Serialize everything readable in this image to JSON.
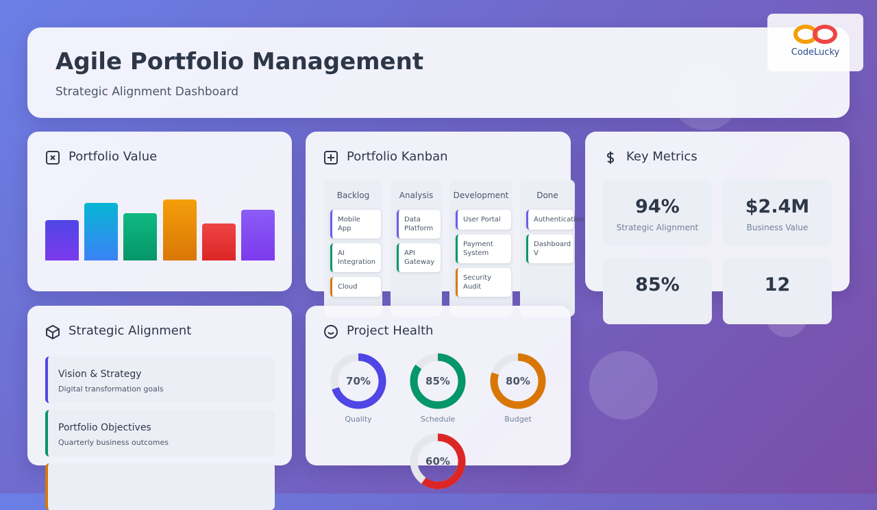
{
  "logo": {
    "text": "CodeLucky"
  },
  "header": {
    "title": "Agile Portfolio Management",
    "subtitle": "Strategic Alignment Dashboard"
  },
  "portfolio_value": {
    "title": "Portfolio Value",
    "bars": [
      {
        "value": 59,
        "colors": [
          "#7c3aed",
          "#4f46e5"
        ]
      },
      {
        "value": 84,
        "colors": [
          "#3b82f6",
          "#06b6d4"
        ]
      },
      {
        "value": 69,
        "colors": [
          "#059669",
          "#10b981"
        ]
      },
      {
        "value": 89,
        "colors": [
          "#d97706",
          "#f59e0b"
        ]
      },
      {
        "value": 54,
        "colors": [
          "#dc2626",
          "#ef4444"
        ]
      },
      {
        "value": 74,
        "colors": [
          "#7c3aed",
          "#8b5cf6"
        ]
      }
    ]
  },
  "kanban": {
    "title": "Portfolio Kanban",
    "columns": [
      {
        "name": "Backlog",
        "cards": [
          {
            "text": "Mobile App",
            "color": "#6d5ce7"
          },
          {
            "text": "AI Integration",
            "color": "#059669"
          },
          {
            "text": "Cloud",
            "color": "#d97706"
          }
        ]
      },
      {
        "name": "Analysis",
        "cards": [
          {
            "text": "Data Platform",
            "color": "#6d5ce7"
          },
          {
            "text": "API Gateway",
            "color": "#059669"
          }
        ]
      },
      {
        "name": "Development",
        "cards": [
          {
            "text": "User Portal",
            "color": "#6d5ce7"
          },
          {
            "text": "Payment System",
            "color": "#059669"
          },
          {
            "text": "Security Audit",
            "color": "#d97706"
          }
        ]
      },
      {
        "name": "Done",
        "cards": [
          {
            "text": "Authentication",
            "color": "#6d5ce7"
          },
          {
            "text": "Dashboard V",
            "color": "#059669"
          }
        ]
      }
    ]
  },
  "metrics": {
    "title": "Key Metrics",
    "items": [
      {
        "value": "94%",
        "label": "Strategic Alignment"
      },
      {
        "value": "$2.4M",
        "label": "Business Value"
      },
      {
        "value": "85%"
      },
      {
        "value": "12"
      }
    ]
  },
  "alignment": {
    "title": "Strategic Alignment",
    "items": [
      {
        "title": "Vision & Strategy",
        "description": "Digital transformation goals",
        "color": "#4f46e5"
      },
      {
        "title": "Portfolio Objectives",
        "description": "Quarterly business outcomes",
        "color": "#059669"
      },
      {
        "color": "#d97706"
      }
    ]
  },
  "health": {
    "title": "Project Health",
    "items": [
      {
        "value": 70,
        "value_label": "70%",
        "label": "Quality",
        "color": "#4f46e5"
      },
      {
        "value": 85,
        "value_label": "85%",
        "label": "Schedule",
        "color": "#059669"
      },
      {
        "value": 80,
        "value_label": "80%",
        "label": "Budget",
        "color": "#d97706"
      },
      {
        "value": 60,
        "value_label": "60%",
        "color": "#dc2626"
      }
    ]
  }
}
